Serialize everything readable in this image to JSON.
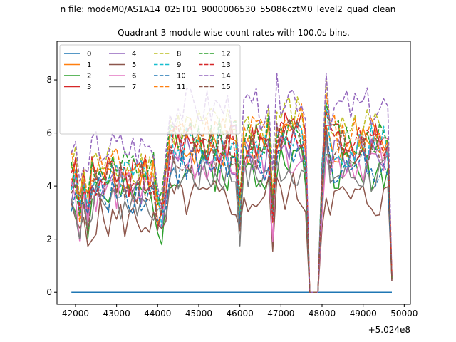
{
  "chart_data": {
    "type": "line",
    "suptitle": "n file: modeM0/AS1A14_025T01_9000006530_55086cztM0_level2_quad_clean",
    "title": "Quadrant 3 module wise count rates with 100.0s bins.",
    "xlabel": "",
    "ylabel": "",
    "x_offset_label": "+5.024e8",
    "xlim": [
      41550,
      50150
    ],
    "ylim": [
      -0.45,
      9.45
    ],
    "xticks": [
      42000,
      43000,
      44000,
      45000,
      46000,
      47000,
      48000,
      49000,
      50000
    ],
    "yticks": [
      0,
      2,
      4,
      6,
      8
    ],
    "x_start": 41900,
    "bin": 100,
    "legend": {
      "placement": "top-left",
      "ncol": 4,
      "entries": [
        "0",
        "1",
        "2",
        "3",
        "4",
        "5",
        "6",
        "7",
        "8",
        "9",
        "10",
        "11",
        "12",
        "13",
        "14",
        "15"
      ]
    },
    "series": [
      {
        "name": "0",
        "color": "#1f77b4",
        "dash": "solid",
        "kind": "zero"
      },
      {
        "name": "1",
        "color": "#ff7f0e",
        "dash": "solid",
        "level": 5.4,
        "seed": 1
      },
      {
        "name": "2",
        "color": "#2ca02c",
        "dash": "solid",
        "level": 4.6,
        "seed": 2
      },
      {
        "name": "3",
        "color": "#d62728",
        "dash": "solid",
        "level": 5.6,
        "seed": 3
      },
      {
        "name": "4",
        "color": "#9467bd",
        "dash": "solid",
        "level": 5.2,
        "seed": 4
      },
      {
        "name": "5",
        "color": "#8c564b",
        "dash": "solid",
        "level": 3.5,
        "seed": 5
      },
      {
        "name": "6",
        "color": "#e377c2",
        "dash": "solid",
        "level": 4.9,
        "seed": 6
      },
      {
        "name": "7",
        "color": "#7f7f7f",
        "dash": "solid",
        "level": 4.4,
        "seed": 7
      },
      {
        "name": "8",
        "color": "#bcbd22",
        "dash": "dashed",
        "level": 6.2,
        "seed": 8
      },
      {
        "name": "9",
        "color": "#17becf",
        "dash": "dashed",
        "level": 5.5,
        "seed": 9
      },
      {
        "name": "10",
        "color": "#1f77b4",
        "dash": "dashed",
        "level": 4.8,
        "seed": 10
      },
      {
        "name": "11",
        "color": "#ff7f0e",
        "dash": "dashed",
        "level": 6.0,
        "seed": 11
      },
      {
        "name": "12",
        "color": "#2ca02c",
        "dash": "dashed",
        "level": 5.8,
        "seed": 12
      },
      {
        "name": "13",
        "color": "#d62728",
        "dash": "dashed",
        "level": 5.6,
        "seed": 13
      },
      {
        "name": "14",
        "color": "#9467bd",
        "dash": "dashed",
        "level": 6.9,
        "seed": 14
      },
      {
        "name": "15",
        "color": "#8c564b",
        "dash": "dashed",
        "level": 5.3,
        "seed": 15
      }
    ]
  }
}
